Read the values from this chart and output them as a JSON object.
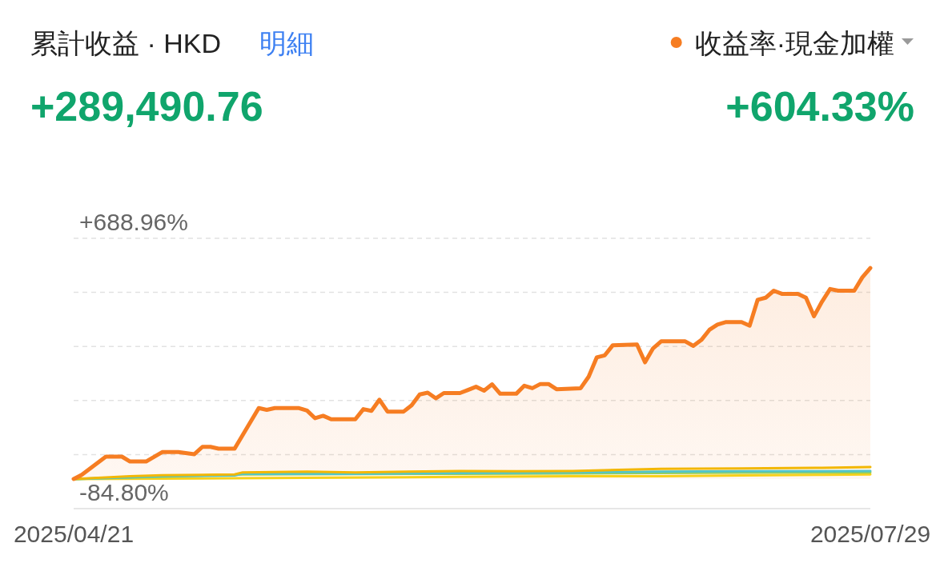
{
  "chart_data": {
    "type": "line",
    "title": "累計收益 · HKD",
    "annotations": [
      "明細",
      "+289,490.76",
      "+604.33%"
    ],
    "xlim": [
      "2025-04-21",
      "2025-07-29"
    ],
    "xticks": [
      {
        "value": "2025-04-21",
        "label": "2025/04/21"
      },
      {
        "value": "2025-07-29",
        "label": "2025/07/29"
      }
    ],
    "ylim": [
      -84.8,
      688.96
    ],
    "yticks": [
      {
        "value": 688.96,
        "label": "+688.96%"
      },
      {
        "value": 534.21,
        "label": null
      },
      {
        "value": 379.46,
        "label": null
      },
      {
        "value": 224.7,
        "label": null
      },
      {
        "value": 69.95,
        "label": null
      },
      {
        "value": -84.8,
        "label": "-84.80%"
      }
    ],
    "grid": "y",
    "legend": "top right",
    "series": [
      {
        "name": "收益率·現金加權",
        "type": "area",
        "color": "#f67d22",
        "x": [
          "2025-04-21",
          "2025-04-22",
          "2025-04-25",
          "2025-04-27",
          "2025-04-28",
          "2025-04-30",
          "2025-05-02",
          "2025-05-04",
          "2025-05-06",
          "2025-05-07",
          "2025-05-08",
          "2025-05-09",
          "2025-05-11",
          "2025-05-14",
          "2025-05-15",
          "2025-05-16",
          "2025-05-19",
          "2025-05-20",
          "2025-05-21",
          "2025-05-22",
          "2025-05-23",
          "2025-05-26",
          "2025-05-27",
          "2025-05-28",
          "2025-05-29",
          "2025-05-30",
          "2025-06-01",
          "2025-06-02",
          "2025-06-03",
          "2025-06-04",
          "2025-06-05",
          "2025-06-06",
          "2025-06-08",
          "2025-06-09",
          "2025-06-10",
          "2025-06-11",
          "2025-06-12",
          "2025-06-13",
          "2025-06-15",
          "2025-06-16",
          "2025-06-17",
          "2025-06-18",
          "2025-06-19",
          "2025-06-20",
          "2025-06-23",
          "2025-06-24",
          "2025-06-25",
          "2025-06-26",
          "2025-06-27",
          "2025-06-30",
          "2025-07-01",
          "2025-07-02",
          "2025-07-03",
          "2025-07-06",
          "2025-07-07",
          "2025-07-08",
          "2025-07-09",
          "2025-07-10",
          "2025-07-11",
          "2025-07-13",
          "2025-07-14",
          "2025-07-15",
          "2025-07-16",
          "2025-07-17",
          "2025-07-18",
          "2025-07-20",
          "2025-07-21",
          "2025-07-22",
          "2025-07-23",
          "2025-07-24",
          "2025-07-25",
          "2025-07-27",
          "2025-07-28",
          "2025-07-29"
        ],
        "values": [
          0,
          12,
          64,
          64,
          50,
          50,
          77,
          77,
          71,
          92,
          92,
          87,
          87,
          203,
          198,
          203,
          203,
          196,
          174,
          181,
          171,
          171,
          200,
          195,
          227,
          193,
          193,
          211,
          242,
          247,
          231,
          246,
          246,
          255,
          264,
          253,
          271,
          244,
          244,
          267,
          260,
          272,
          272,
          257,
          260,
          293,
          348,
          354,
          383,
          385,
          334,
          374,
          394,
          394,
          381,
          398,
          427,
          442,
          449,
          449,
          439,
          513,
          519,
          539,
          530,
          530,
          519,
          466,
          508,
          544,
          539,
          539,
          577,
          604
        ]
      },
      {
        "type": "line",
        "color": "#f2b705",
        "x": [
          "2025-04-21",
          "2025-04-28",
          "2025-05-02",
          "2025-05-11",
          "2025-05-12",
          "2025-05-20",
          "2025-05-26",
          "2025-06-08",
          "2025-06-15",
          "2025-06-22",
          "2025-07-03",
          "2025-07-13",
          "2025-07-23",
          "2025-07-29"
        ],
        "values": [
          0,
          8,
          11,
          13,
          19,
          21,
          19,
          23,
          22,
          23,
          29,
          30,
          32,
          34
        ]
      },
      {
        "type": "line",
        "color": "#52c5c9",
        "x": [
          "2025-04-21",
          "2025-05-02",
          "2025-05-11",
          "2025-05-12",
          "2025-05-26",
          "2025-06-08",
          "2025-06-22",
          "2025-07-03",
          "2025-07-13",
          "2025-07-23",
          "2025-07-29"
        ],
        "values": [
          0,
          8,
          10,
          15,
          15,
          17,
          19,
          21,
          22,
          22,
          23
        ]
      },
      {
        "type": "line",
        "color": "#9bcf53",
        "x": [
          "2025-04-21",
          "2025-05-12",
          "2025-06-08",
          "2025-06-22",
          "2025-07-13",
          "2025-07-29"
        ],
        "values": [
          0,
          13,
          15,
          16,
          18,
          19
        ]
      },
      {
        "type": "line",
        "color": "#f7d019",
        "x": [
          "2025-04-21",
          "2025-05-11",
          "2025-06-08",
          "2025-06-22",
          "2025-07-03",
          "2025-07-13",
          "2025-07-23",
          "2025-07-29"
        ],
        "values": [
          0,
          2,
          6,
          8,
          8,
          10,
          12,
          13
        ]
      }
    ]
  }
}
